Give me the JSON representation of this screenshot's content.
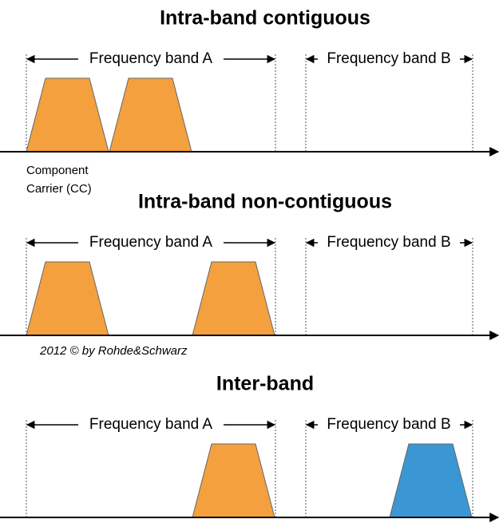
{
  "panels": [
    {
      "title": "Intra-band contiguous",
      "bands": [
        "Frequency band A",
        "Frequency band B"
      ]
    },
    {
      "title": "Intra-band non-contiguous",
      "bands": [
        "Frequency band A",
        "Frequency band B"
      ]
    },
    {
      "title": "Inter-band",
      "bands": [
        "Frequency band A",
        "Frequency band B"
      ]
    }
  ],
  "annotation": [
    "Component",
    "Carrier (CC)"
  ],
  "copyright": "2012 © by Rohde&Schwarz"
}
